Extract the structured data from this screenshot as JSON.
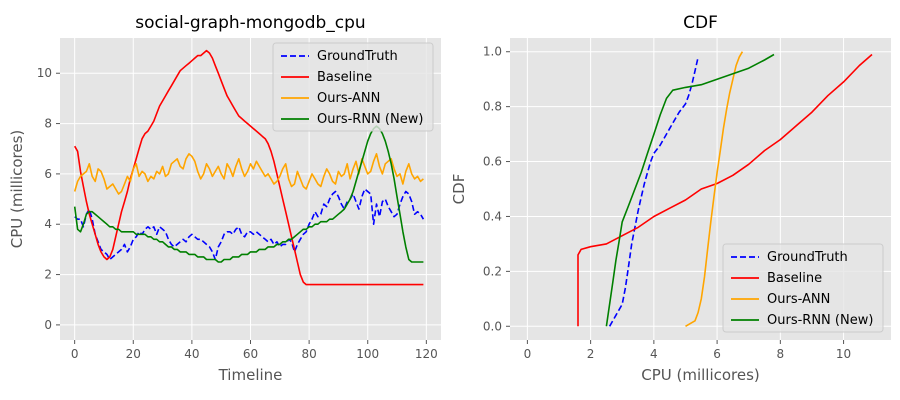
{
  "colors": {
    "GroundTruth": "#0000ff",
    "Baseline": "#ff0000",
    "Ours-ANN": "#ffa500",
    "Ours-RNN (New)": "#008000",
    "panel_bg": "#e5e5e5"
  },
  "chart_data": [
    {
      "type": "line",
      "title": "social-graph-mongodb_cpu",
      "xlabel": "Timeline",
      "ylabel": "CPU (millicores)",
      "xlim": [
        -5,
        125
      ],
      "ylim": [
        -0.6,
        11.4
      ],
      "xticks": [
        0,
        20,
        40,
        60,
        80,
        100,
        120
      ],
      "yticks": [
        0,
        2,
        4,
        6,
        8,
        10
      ],
      "grid": true,
      "legend_position": "top-right",
      "series": [
        {
          "name": "GroundTruth",
          "style": "dashed",
          "x_start": 0,
          "x_step": 1,
          "values": [
            4.3,
            4.2,
            4.2,
            3.9,
            4.4,
            4.6,
            4.2,
            3.6,
            3.3,
            3.0,
            2.9,
            2.8,
            2.6,
            2.7,
            2.8,
            2.9,
            3.0,
            3.2,
            2.9,
            3.1,
            3.4,
            3.5,
            3.7,
            3.6,
            3.8,
            3.9,
            3.8,
            3.9,
            3.6,
            3.9,
            3.8,
            3.7,
            3.4,
            3.2,
            3.1,
            3.2,
            3.3,
            3.4,
            3.3,
            3.5,
            3.6,
            3.5,
            3.4,
            3.4,
            3.3,
            3.2,
            3.1,
            2.9,
            2.6,
            3.1,
            3.3,
            3.6,
            3.7,
            3.7,
            3.6,
            3.8,
            3.9,
            3.6,
            3.5,
            3.7,
            3.7,
            3.6,
            3.7,
            3.6,
            3.5,
            3.4,
            3.3,
            3.4,
            3.2,
            3.3,
            3.1,
            3.2,
            3.2,
            3.4,
            3.3,
            2.9,
            3.2,
            3.4,
            3.6,
            3.7,
            4.0,
            4.2,
            4.5,
            4.3,
            4.4,
            4.8,
            4.7,
            5.0,
            5.2,
            5.3,
            5.1,
            4.8,
            4.6,
            4.9,
            5.0,
            5.2,
            4.9,
            4.6,
            5.1,
            5.4,
            5.3,
            5.2,
            4.0,
            4.8,
            4.3,
            4.9,
            5.0,
            4.7,
            4.5,
            4.3,
            4.4,
            4.8,
            5.1,
            5.3,
            5.2,
            4.9,
            4.4,
            4.5,
            4.4,
            4.2
          ]
        },
        {
          "name": "Baseline",
          "style": "solid",
          "x_start": 0,
          "x_step": 1,
          "values": [
            7.1,
            6.9,
            6.1,
            5.5,
            4.9,
            4.4,
            4.0,
            3.6,
            3.2,
            2.9,
            2.7,
            2.6,
            2.7,
            3.0,
            3.5,
            4.0,
            4.5,
            4.9,
            5.3,
            5.8,
            6.2,
            6.6,
            7.0,
            7.4,
            7.6,
            7.7,
            7.9,
            8.1,
            8.4,
            8.7,
            8.9,
            9.1,
            9.3,
            9.5,
            9.7,
            9.9,
            10.1,
            10.2,
            10.3,
            10.4,
            10.5,
            10.6,
            10.7,
            10.7,
            10.8,
            10.9,
            10.8,
            10.6,
            10.3,
            10.0,
            9.7,
            9.4,
            9.1,
            8.9,
            8.7,
            8.5,
            8.3,
            8.2,
            8.1,
            8.0,
            7.9,
            7.8,
            7.7,
            7.6,
            7.5,
            7.4,
            7.2,
            6.9,
            6.5,
            6.0,
            5.5,
            5.0,
            4.5,
            4.0,
            3.5,
            3.0,
            2.5,
            2.0,
            1.7,
            1.6,
            1.6,
            1.6,
            1.6,
            1.6,
            1.6,
            1.6,
            1.6,
            1.6,
            1.6,
            1.6,
            1.6,
            1.6,
            1.6,
            1.6,
            1.6,
            1.6,
            1.6,
            1.6,
            1.6,
            1.6,
            1.6,
            1.6,
            1.6,
            1.6,
            1.6,
            1.6,
            1.6,
            1.6,
            1.6,
            1.6,
            1.6,
            1.6,
            1.6,
            1.6,
            1.6,
            1.6,
            1.6,
            1.6,
            1.6,
            1.6
          ],
          "x_override": [
            0,
            2,
            4,
            6,
            8,
            10,
            12,
            14,
            16,
            18,
            20,
            22,
            24,
            26,
            28,
            30,
            32,
            34,
            36,
            38,
            40,
            42,
            44,
            46,
            48,
            50,
            52,
            54,
            56,
            58,
            60,
            62,
            64,
            66,
            68,
            70,
            72,
            74,
            76,
            78,
            80,
            82,
            84,
            86,
            88,
            90,
            92,
            94,
            96,
            98,
            100,
            102,
            104,
            106,
            108,
            110,
            112,
            114,
            116,
            118,
            119,
            119,
            119,
            119,
            119,
            119,
            119,
            119,
            119,
            119,
            119,
            119,
            119,
            119,
            119,
            119,
            119,
            119,
            119,
            119,
            119,
            119,
            119,
            119,
            119,
            119,
            119,
            119,
            119,
            119,
            119,
            119,
            119,
            119,
            119,
            119,
            119,
            119,
            119,
            119,
            119,
            119,
            119,
            119,
            119,
            119,
            119,
            119,
            119,
            119,
            119,
            119,
            119,
            119,
            119,
            119,
            119,
            119,
            119,
            119
          ]
        },
        {
          "name": "Ours-ANN",
          "style": "solid",
          "x_start": 0,
          "x_step": 1,
          "values": [
            5.3,
            5.7,
            5.9,
            6.0,
            6.1,
            6.4,
            5.9,
            5.7,
            6.2,
            6.1,
            5.8,
            5.4,
            5.5,
            5.6,
            5.4,
            5.2,
            5.3,
            5.6,
            5.9,
            5.7,
            6.2,
            6.4,
            5.9,
            6.1,
            6.0,
            5.7,
            5.9,
            5.8,
            6.1,
            6.0,
            6.3,
            5.9,
            6.0,
            6.4,
            6.5,
            6.6,
            6.3,
            6.2,
            6.6,
            6.8,
            6.7,
            6.5,
            6.1,
            5.8,
            6.0,
            6.4,
            6.2,
            5.9,
            6.1,
            6.3,
            6.0,
            5.8,
            6.4,
            6.2,
            5.9,
            6.3,
            6.6,
            6.2,
            5.9,
            6.1,
            6.4,
            6.2,
            6.5,
            6.3,
            6.1,
            5.9,
            6.0,
            5.8,
            5.6,
            5.7,
            5.9,
            6.2,
            6.4,
            5.8,
            5.5,
            5.6,
            6.1,
            5.8,
            5.5,
            5.4,
            5.7,
            6.0,
            5.8,
            5.6,
            5.5,
            5.9,
            6.2,
            6.0,
            5.7,
            5.6,
            6.1,
            5.9,
            6.0,
            6.4,
            5.8,
            6.2,
            6.5,
            6.0,
            6.6,
            6.3,
            6.0,
            6.1,
            6.5,
            6.8,
            6.3,
            6.0,
            6.4,
            6.5,
            6.6,
            6.2,
            5.9,
            6.0,
            5.6,
            6.1,
            6.4,
            6.0,
            5.8,
            5.9,
            5.7,
            5.8
          ]
        },
        {
          "name": "Ours-RNN (New)",
          "style": "solid",
          "x_start": 0,
          "x_step": 1,
          "values": [
            4.7,
            3.8,
            3.7,
            4.0,
            4.4,
            4.5,
            4.5,
            4.4,
            4.3,
            4.2,
            4.1,
            4.0,
            3.9,
            3.9,
            3.8,
            3.8,
            3.7,
            3.7,
            3.7,
            3.7,
            3.7,
            3.6,
            3.6,
            3.6,
            3.6,
            3.5,
            3.5,
            3.4,
            3.4,
            3.3,
            3.3,
            3.2,
            3.1,
            3.1,
            3.0,
            3.0,
            2.9,
            2.9,
            2.9,
            2.8,
            2.8,
            2.8,
            2.7,
            2.7,
            2.7,
            2.6,
            2.6,
            2.6,
            2.6,
            2.5,
            2.5,
            2.6,
            2.6,
            2.6,
            2.7,
            2.7,
            2.7,
            2.8,
            2.8,
            2.8,
            2.9,
            2.9,
            2.9,
            3.0,
            3.0,
            3.0,
            3.1,
            3.1,
            3.1,
            3.2,
            3.2,
            3.3,
            3.3,
            3.4,
            3.4,
            3.5,
            3.6,
            3.7,
            3.8,
            3.8,
            3.9,
            3.9,
            4.0,
            4.0,
            4.1,
            4.1,
            4.1,
            4.2,
            4.2,
            4.3,
            4.4,
            4.5,
            4.6,
            4.8,
            5.0,
            5.3,
            5.7,
            6.1,
            6.5,
            6.9,
            7.3,
            7.6,
            7.8,
            7.9,
            7.8,
            7.6,
            7.3,
            6.9,
            6.4,
            5.8,
            5.1,
            4.4,
            3.7,
            3.1,
            2.6,
            2.5,
            2.5,
            2.5,
            2.5,
            2.5
          ]
        }
      ]
    },
    {
      "type": "line",
      "title": "CDF",
      "xlabel": "CPU (millicores)",
      "ylabel": "CDF",
      "xlim": [
        -0.55,
        11.5
      ],
      "ylim": [
        -0.05,
        1.05
      ],
      "xticks": [
        0,
        2,
        4,
        6,
        8,
        10
      ],
      "yticks": [
        0.0,
        0.2,
        0.4,
        0.6,
        0.8,
        1.0
      ],
      "ytick_labels": [
        "0.0",
        "0.2",
        "0.4",
        "0.6",
        "0.8",
        "1.0"
      ],
      "grid": true,
      "legend_position": "bottom-right",
      "series": [
        {
          "name": "GroundTruth",
          "style": "dashed",
          "x": [
            2.6,
            2.8,
            3.0,
            3.1,
            3.2,
            3.3,
            3.4,
            3.5,
            3.6,
            3.7,
            3.8,
            3.9,
            4.0,
            4.2,
            4.4,
            4.6,
            4.8,
            5.0,
            5.1,
            5.2,
            5.3,
            5.4
          ],
          "y": [
            0.0,
            0.04,
            0.08,
            0.14,
            0.22,
            0.3,
            0.36,
            0.42,
            0.47,
            0.52,
            0.56,
            0.6,
            0.63,
            0.66,
            0.7,
            0.74,
            0.78,
            0.81,
            0.84,
            0.88,
            0.93,
            0.98
          ]
        },
        {
          "name": "Baseline",
          "style": "solid",
          "x": [
            1.6,
            1.6,
            1.7,
            2.0,
            2.5,
            3.0,
            3.5,
            4.0,
            4.5,
            5.0,
            5.5,
            6.0,
            6.5,
            7.0,
            7.5,
            8.0,
            8.5,
            9.0,
            9.5,
            10.0,
            10.5,
            10.9
          ],
          "y": [
            0.0,
            0.26,
            0.28,
            0.29,
            0.3,
            0.33,
            0.36,
            0.4,
            0.43,
            0.46,
            0.5,
            0.52,
            0.55,
            0.59,
            0.64,
            0.68,
            0.73,
            0.78,
            0.84,
            0.89,
            0.95,
            0.99
          ]
        },
        {
          "name": "Ours-ANN",
          "style": "solid",
          "x": [
            5.0,
            5.3,
            5.4,
            5.5,
            5.6,
            5.7,
            5.8,
            5.9,
            6.0,
            6.1,
            6.2,
            6.3,
            6.4,
            6.5,
            6.6,
            6.7,
            6.8
          ],
          "y": [
            0.0,
            0.02,
            0.05,
            0.1,
            0.18,
            0.28,
            0.38,
            0.47,
            0.56,
            0.64,
            0.72,
            0.79,
            0.85,
            0.9,
            0.95,
            0.98,
            1.0
          ]
        },
        {
          "name": "Ours-RNN (New)",
          "style": "solid",
          "x": [
            2.5,
            2.6,
            2.7,
            2.8,
            2.9,
            3.0,
            3.2,
            3.4,
            3.6,
            3.8,
            4.0,
            4.2,
            4.4,
            4.6,
            5.0,
            5.5,
            6.0,
            6.5,
            7.0,
            7.5,
            7.8
          ],
          "y": [
            0.0,
            0.08,
            0.16,
            0.24,
            0.31,
            0.38,
            0.44,
            0.5,
            0.56,
            0.63,
            0.7,
            0.77,
            0.83,
            0.86,
            0.87,
            0.88,
            0.9,
            0.92,
            0.94,
            0.97,
            0.99
          ]
        }
      ]
    }
  ]
}
